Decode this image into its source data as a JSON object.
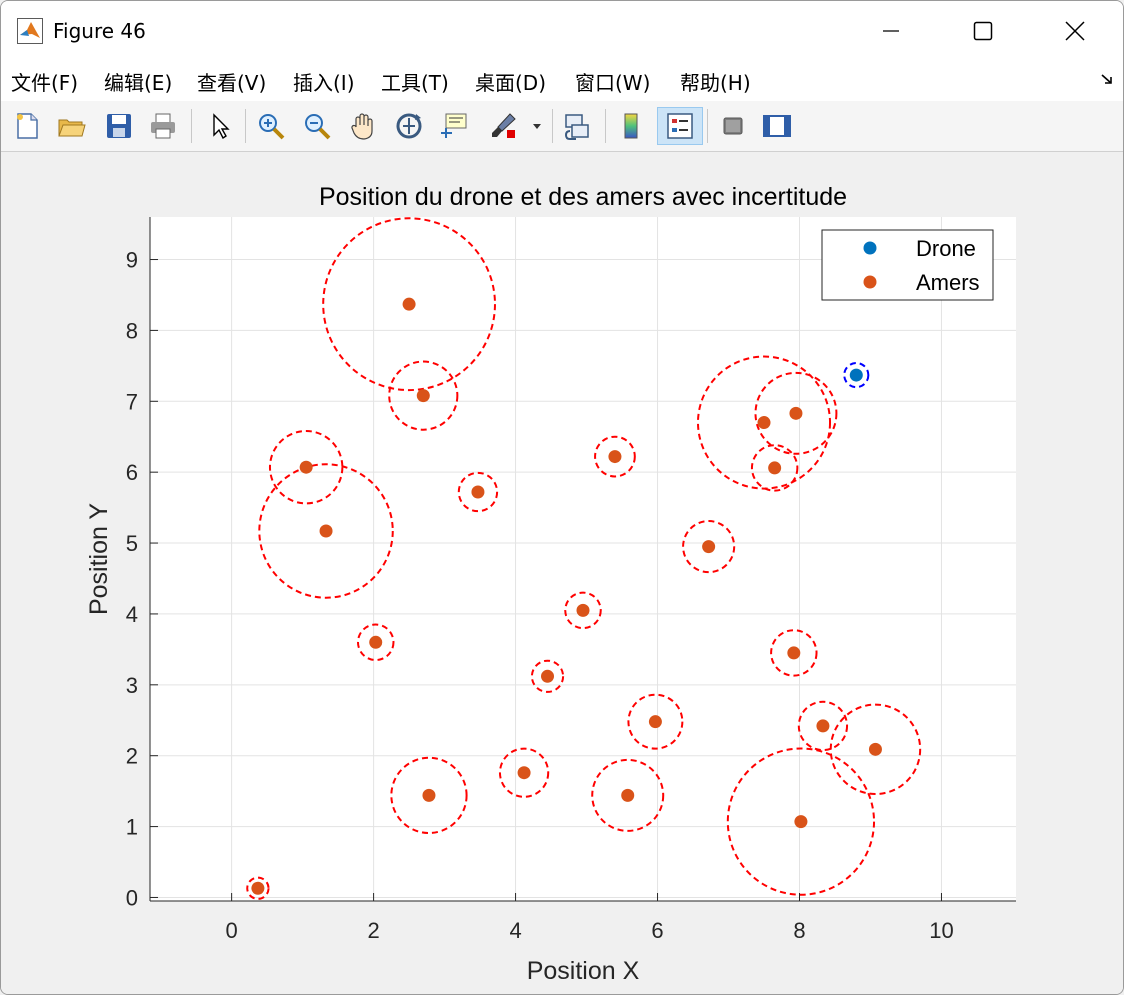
{
  "window": {
    "title": "Figure 46"
  },
  "menu": [
    "文件(F)",
    "编辑(E)",
    "查看(V)",
    "插入(I)",
    "工具(T)",
    "桌面(D)",
    "窗口(W)",
    "帮助(H)"
  ],
  "toolbar_icons": [
    "new-figure-icon",
    "open-file-icon",
    "save-icon",
    "print-icon",
    "pointer-icon",
    "zoom-in-icon",
    "zoom-out-icon",
    "pan-hand-icon",
    "rotate-3d-icon",
    "data-cursor-icon",
    "brush-icon",
    "link-plot-icon",
    "colorbar-icon",
    "legend-icon",
    "hide-plot-tools-icon",
    "show-plot-tools-icon"
  ],
  "chart_data": {
    "type": "scatter",
    "title": "Position du drone et des amers avec incertitude",
    "xlabel": "Position X",
    "ylabel": "Position Y",
    "xlim": [
      -1.15,
      11.05
    ],
    "ylim": [
      -0.05,
      9.6
    ],
    "xticks": [
      0,
      2,
      4,
      6,
      8,
      10
    ],
    "yticks": [
      0,
      1,
      2,
      3,
      4,
      5,
      6,
      7,
      8,
      9
    ],
    "grid": true,
    "legend": {
      "placement": "top-right",
      "entries": [
        "Drone",
        "Amers"
      ]
    },
    "colors": {
      "drone": "#0072BD",
      "amers": "#D95319",
      "drone_circle": "#0000ff",
      "amers_circle": "#ff0000"
    },
    "drone": {
      "x": 8.8,
      "y": 7.37,
      "r": 0.17
    },
    "amers": [
      {
        "x": 2.5,
        "y": 8.37,
        "r": 1.21
      },
      {
        "x": 2.7,
        "y": 7.08,
        "r": 0.48
      },
      {
        "x": 1.05,
        "y": 6.07,
        "r": 0.51
      },
      {
        "x": 1.33,
        "y": 5.17,
        "r": 0.94
      },
      {
        "x": 3.47,
        "y": 5.72,
        "r": 0.27
      },
      {
        "x": 5.4,
        "y": 6.22,
        "r": 0.28
      },
      {
        "x": 7.5,
        "y": 6.7,
        "r": 0.93
      },
      {
        "x": 7.95,
        "y": 6.83,
        "r": 0.57
      },
      {
        "x": 7.65,
        "y": 6.06,
        "r": 0.32
      },
      {
        "x": 6.72,
        "y": 4.95,
        "r": 0.36
      },
      {
        "x": 4.95,
        "y": 4.05,
        "r": 0.25
      },
      {
        "x": 2.03,
        "y": 3.6,
        "r": 0.25
      },
      {
        "x": 4.45,
        "y": 3.12,
        "r": 0.22
      },
      {
        "x": 7.92,
        "y": 3.45,
        "r": 0.32
      },
      {
        "x": 5.97,
        "y": 2.48,
        "r": 0.38
      },
      {
        "x": 8.33,
        "y": 2.42,
        "r": 0.34
      },
      {
        "x": 9.07,
        "y": 2.09,
        "r": 0.63
      },
      {
        "x": 4.12,
        "y": 1.76,
        "r": 0.34
      },
      {
        "x": 2.78,
        "y": 1.44,
        "r": 0.53
      },
      {
        "x": 5.58,
        "y": 1.44,
        "r": 0.5
      },
      {
        "x": 8.02,
        "y": 1.07,
        "r": 1.03
      },
      {
        "x": 0.37,
        "y": 0.13,
        "r": 0.15
      }
    ]
  }
}
